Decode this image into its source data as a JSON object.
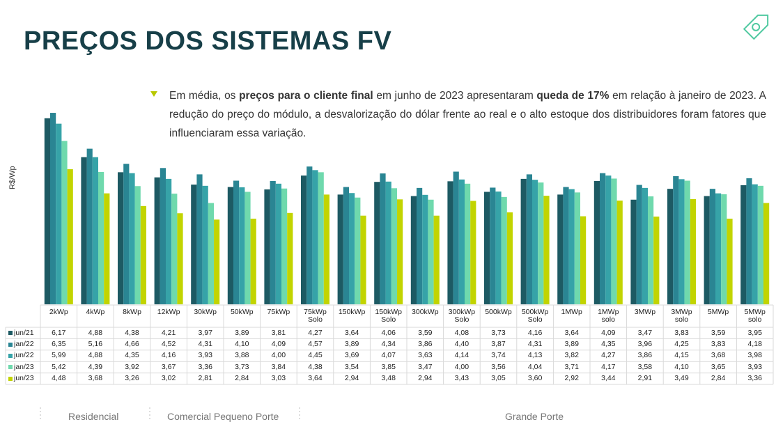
{
  "title": "PREÇOS DOS SISTEMAS FV",
  "annotation": [
    {
      "text": "Em média, os ",
      "bold": false
    },
    {
      "text": "preços para o cliente final",
      "bold": true
    },
    {
      "text": " em junho de 2023 apresentaram ",
      "bold": false
    },
    {
      "text": "queda de 17%",
      "bold": true
    },
    {
      "text": " em relação à janeiro de 2023. A redução do preço do módulo, a desvalorização do dólar frente ao real e o alto estoque dos distribuidores foram fatores que influenciaram essa variação.",
      "bold": false
    }
  ],
  "groups": [
    "Residencial",
    "Comercial Pequeno Porte",
    "Grande Porte"
  ],
  "chart_data": {
    "type": "bar",
    "ylabel": "R$/Wp",
    "ylim": [
      0,
      7
    ],
    "categories": [
      "2kWp",
      "4kWp",
      "8kWp",
      "12kWp",
      "30kWp",
      "50kWp",
      "75kWp",
      "75kWp Solo",
      "150kWp",
      "150kWp Solo",
      "300kWp",
      "300kWp Solo",
      "500kWp",
      "500kWp Solo",
      "1MWp",
      "1MWp solo",
      "3MWp",
      "3MWp solo",
      "5MWp",
      "5MWp solo"
    ],
    "series": [
      {
        "name": "jun/21",
        "color": "#1d5a63",
        "values": [
          6.17,
          4.88,
          4.38,
          4.21,
          3.97,
          3.89,
          3.81,
          4.27,
          3.64,
          4.06,
          3.59,
          4.08,
          3.73,
          4.16,
          3.64,
          4.09,
          3.47,
          3.83,
          3.59,
          3.95
        ],
        "value_labels": [
          "6,17",
          "4,88",
          "4,38",
          "4,21",
          "3,97",
          "3,89",
          "3,81",
          "4,27",
          "3,64",
          "4,06",
          "3,59",
          "4,08",
          "3,73",
          "4,16",
          "3,64",
          "4,09",
          "3,47",
          "3,83",
          "3,59",
          "3,95"
        ]
      },
      {
        "name": "jan/22",
        "color": "#2a8593",
        "values": [
          6.35,
          5.16,
          4.66,
          4.52,
          4.31,
          4.1,
          4.09,
          4.57,
          3.89,
          4.34,
          3.86,
          4.4,
          3.87,
          4.31,
          3.89,
          4.35,
          3.96,
          4.25,
          3.83,
          4.18
        ],
        "value_labels": [
          "6,35",
          "5,16",
          "4,66",
          "4,52",
          "4,31",
          "4,10",
          "4,09",
          "4,57",
          "3,89",
          "4,34",
          "3,86",
          "4,40",
          "3,87",
          "4,31",
          "3,89",
          "4,35",
          "3,96",
          "4,25",
          "3,83",
          "4,18"
        ]
      },
      {
        "name": "jun/22",
        "color": "#36a3a8",
        "values": [
          5.99,
          4.88,
          4.35,
          4.16,
          3.93,
          3.88,
          4.0,
          4.45,
          3.69,
          4.07,
          3.63,
          4.14,
          3.74,
          4.13,
          3.82,
          4.27,
          3.86,
          4.15,
          3.68,
          3.98
        ],
        "value_labels": [
          "5,99",
          "4,88",
          "4,35",
          "4,16",
          "3,93",
          "3,88",
          "4,00",
          "4,45",
          "3,69",
          "4,07",
          "3,63",
          "4,14",
          "3,74",
          "4,13",
          "3,82",
          "4,27",
          "3,86",
          "4,15",
          "3,68",
          "3,98"
        ]
      },
      {
        "name": "jan/23",
        "color": "#6fd9ad",
        "values": [
          5.42,
          4.39,
          3.92,
          3.67,
          3.36,
          3.73,
          3.84,
          4.38,
          3.54,
          3.85,
          3.47,
          4.0,
          3.56,
          4.04,
          3.71,
          4.17,
          3.58,
          4.1,
          3.65,
          3.93
        ],
        "value_labels": [
          "5,42",
          "4,39",
          "3,92",
          "3,67",
          "3,36",
          "3,73",
          "3,84",
          "4,38",
          "3,54",
          "3,85",
          "3,47",
          "4,00",
          "3,56",
          "4,04",
          "3,71",
          "4,17",
          "3,58",
          "4,10",
          "3,65",
          "3,93"
        ]
      },
      {
        "name": "jun/23",
        "color": "#c2d400",
        "values": [
          4.48,
          3.68,
          3.26,
          3.02,
          2.81,
          2.84,
          3.03,
          3.64,
          2.94,
          3.48,
          2.94,
          3.43,
          3.05,
          3.6,
          2.92,
          3.44,
          2.91,
          3.49,
          2.84,
          3.36
        ],
        "value_labels": [
          "4,48",
          "3,68",
          "3,26",
          "3,02",
          "2,81",
          "2,84",
          "3,03",
          "3,64",
          "2,94",
          "3,48",
          "2,94",
          "3,43",
          "3,05",
          "3,60",
          "2,92",
          "3,44",
          "2,91",
          "3,49",
          "2,84",
          "3,36"
        ]
      }
    ]
  }
}
